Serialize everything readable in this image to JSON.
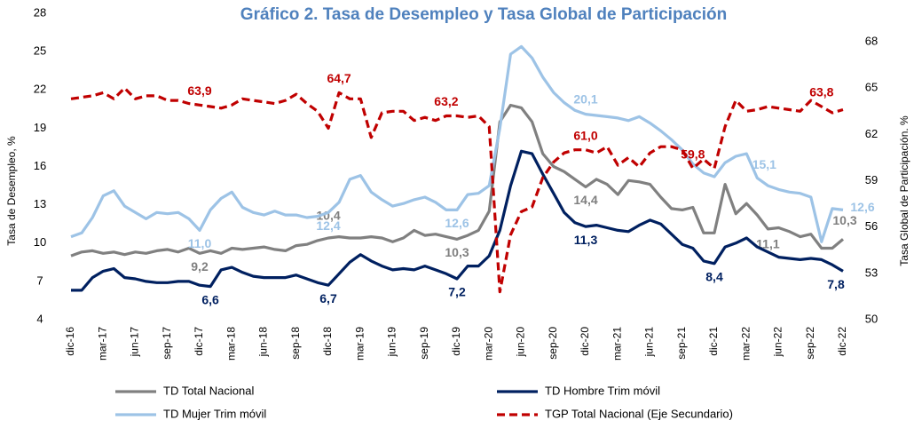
{
  "chart_data": {
    "type": "line",
    "title": "Gráfico 2. Tasa de Desempleo y Tasa Global de Participación",
    "ylabel": "Tasa de Desempleo, %",
    "y2label": "Tasa Global de Participación. %",
    "categories": [
      "dic-16",
      null,
      null,
      "mar-17",
      null,
      null,
      "jun-17",
      null,
      null,
      "sep-17",
      null,
      null,
      "dic-17",
      null,
      null,
      "mar-18",
      null,
      null,
      "jun-18",
      null,
      null,
      "sep-18",
      null,
      null,
      "dic-18",
      null,
      null,
      "mar-19",
      null,
      null,
      "jun-19",
      null,
      null,
      "sep-19",
      null,
      null,
      "dic-19",
      null,
      null,
      "mar-20",
      null,
      null,
      "jun-20",
      null,
      null,
      "sep-20",
      null,
      null,
      "dic-20",
      null,
      null,
      "mar-21",
      null,
      null,
      "jun-21",
      null,
      null,
      "sep-21",
      null,
      null,
      "dic-21",
      null,
      null,
      "mar-22",
      null,
      null,
      "jun-22",
      null,
      null,
      "sep-22",
      null,
      null,
      "dic-22"
    ],
    "ylim": [
      4,
      28
    ],
    "yticks": [
      4,
      7,
      10,
      13,
      16,
      19,
      22,
      25,
      28
    ],
    "y2lim": [
      50,
      68
    ],
    "y2ticks": [
      50,
      53,
      56,
      59,
      62,
      65,
      68
    ],
    "series": [
      {
        "name": "TD Total Nacional",
        "color": "#808080",
        "values": [
          9.0,
          9.3,
          9.4,
          9.2,
          9.3,
          9.1,
          9.3,
          9.2,
          9.4,
          9.5,
          9.3,
          9.6,
          9.2,
          9.4,
          9.2,
          9.6,
          9.5,
          9.6,
          9.7,
          9.5,
          9.4,
          9.8,
          9.9,
          10.2,
          10.4,
          10.5,
          10.4,
          10.4,
          10.5,
          10.4,
          10.1,
          10.4,
          11.0,
          10.6,
          10.7,
          10.5,
          10.3,
          10.6,
          11.0,
          12.5,
          19.5,
          20.8,
          20.6,
          19.5,
          17.0,
          16.0,
          15.6,
          15.0,
          14.4,
          15.0,
          14.6,
          13.8,
          14.9,
          14.8,
          14.6,
          13.6,
          12.7,
          12.6,
          12.8,
          10.8,
          10.8,
          14.6,
          12.3,
          13.1,
          12.2,
          11.1,
          11.2,
          10.9,
          10.5,
          10.7,
          9.6,
          9.6,
          10.3
        ],
        "value_labels": [
          null,
          null,
          null,
          null,
          null,
          null,
          null,
          null,
          null,
          null,
          null,
          null,
          "9,2",
          null,
          null,
          null,
          null,
          null,
          null,
          null,
          null,
          null,
          null,
          null,
          "10,4",
          null,
          null,
          null,
          null,
          null,
          null,
          null,
          null,
          null,
          null,
          null,
          "10,3",
          null,
          null,
          null,
          null,
          null,
          null,
          null,
          null,
          null,
          null,
          null,
          "14,4",
          null,
          null,
          null,
          null,
          null,
          null,
          null,
          null,
          null,
          null,
          null,
          null,
          null,
          null,
          null,
          null,
          "11,1",
          null,
          null,
          null,
          null,
          null,
          null,
          "10,3"
        ]
      },
      {
        "name": "TD Hombre Trim móvil",
        "color": "#002060",
        "values": [
          6.3,
          6.3,
          7.3,
          7.8,
          8.0,
          7.3,
          7.2,
          7.0,
          6.9,
          6.9,
          7.0,
          7.0,
          6.7,
          6.6,
          7.9,
          8.1,
          7.7,
          7.4,
          7.3,
          7.3,
          7.3,
          7.5,
          7.2,
          6.9,
          6.7,
          7.6,
          8.5,
          9.1,
          8.6,
          8.2,
          7.9,
          8.0,
          7.9,
          8.2,
          7.9,
          7.6,
          7.2,
          8.2,
          8.2,
          9.0,
          11.0,
          14.5,
          17.2,
          17.0,
          15.4,
          13.9,
          12.4,
          11.6,
          11.3,
          11.4,
          11.2,
          11.0,
          10.9,
          11.4,
          11.8,
          11.5,
          10.7,
          9.9,
          9.6,
          8.6,
          8.4,
          9.7,
          10.0,
          10.4,
          9.7,
          9.3,
          8.9,
          8.8,
          8.7,
          8.8,
          8.7,
          8.3,
          7.8
        ],
        "value_labels": [
          null,
          null,
          null,
          null,
          null,
          null,
          null,
          null,
          null,
          null,
          null,
          null,
          null,
          "6,6",
          null,
          null,
          null,
          null,
          null,
          null,
          null,
          null,
          null,
          null,
          "6,7",
          null,
          null,
          null,
          null,
          null,
          null,
          null,
          null,
          null,
          null,
          null,
          "7,2",
          null,
          null,
          null,
          null,
          null,
          null,
          null,
          null,
          null,
          null,
          null,
          "11,3",
          null,
          null,
          null,
          null,
          null,
          null,
          null,
          null,
          null,
          null,
          null,
          "8,4",
          null,
          null,
          null,
          null,
          null,
          null,
          null,
          null,
          null,
          null,
          null,
          "7,8"
        ]
      },
      {
        "name": "TD Mujer Trim móvil",
        "color": "#9dc3e6",
        "values": [
          10.5,
          10.8,
          12.0,
          13.7,
          14.1,
          12.9,
          12.4,
          11.9,
          12.4,
          12.3,
          12.4,
          11.9,
          11.0,
          12.6,
          13.5,
          14.0,
          12.8,
          12.4,
          12.2,
          12.5,
          12.2,
          12.2,
          12.0,
          12.1,
          12.4,
          13.2,
          15.0,
          15.3,
          14.0,
          13.4,
          12.9,
          13.1,
          13.4,
          13.6,
          13.2,
          12.6,
          12.6,
          13.8,
          13.9,
          14.5,
          19.0,
          24.8,
          25.4,
          24.5,
          23.0,
          21.8,
          21.0,
          20.4,
          20.1,
          20.0,
          19.9,
          19.8,
          19.6,
          19.9,
          19.4,
          18.8,
          18.1,
          17.3,
          16.2,
          15.5,
          15.2,
          16.3,
          16.8,
          17.0,
          15.1,
          14.5,
          14.2,
          14.0,
          13.9,
          13.6,
          10.1,
          12.7,
          12.6
        ],
        "value_labels": [
          null,
          null,
          null,
          null,
          null,
          null,
          null,
          null,
          null,
          null,
          null,
          null,
          "11,0",
          null,
          null,
          null,
          null,
          null,
          null,
          null,
          null,
          null,
          null,
          null,
          "12,4",
          null,
          null,
          null,
          null,
          null,
          null,
          null,
          null,
          null,
          null,
          null,
          "12,6",
          null,
          null,
          null,
          null,
          null,
          null,
          null,
          null,
          null,
          null,
          null,
          "20,1",
          null,
          null,
          null,
          null,
          null,
          null,
          null,
          null,
          null,
          null,
          null,
          null,
          null,
          null,
          null,
          "15,1",
          null,
          null,
          null,
          null,
          null,
          null,
          null,
          "12,6"
        ]
      },
      {
        "name": "TGP Total Nacional (Eje Secundario)",
        "color": "#c00000",
        "axis": "y2",
        "dashed": true,
        "values": [
          64.3,
          64.4,
          64.5,
          64.7,
          64.3,
          65.0,
          64.3,
          64.5,
          64.5,
          64.2,
          64.2,
          64.0,
          63.9,
          63.8,
          63.7,
          63.9,
          64.3,
          64.2,
          64.1,
          64.0,
          64.2,
          64.6,
          64.0,
          63.5,
          62.4,
          64.7,
          64.3,
          64.3,
          61.8,
          63.4,
          63.5,
          63.5,
          62.9,
          63.1,
          62.9,
          63.2,
          63.2,
          63.1,
          63.2,
          62.5,
          51.8,
          55.5,
          57.0,
          57.3,
          59.2,
          60.2,
          60.8,
          61.0,
          61.0,
          60.8,
          61.2,
          60.0,
          60.5,
          59.9,
          60.8,
          61.2,
          61.2,
          61.0,
          59.8,
          60.4,
          59.8,
          62.5,
          64.2,
          63.5,
          63.6,
          63.8,
          63.7,
          63.6,
          63.5,
          64.2,
          63.8,
          63.4,
          63.6
        ],
        "value_labels": [
          null,
          null,
          null,
          null,
          null,
          null,
          null,
          null,
          null,
          null,
          null,
          null,
          "63,9",
          null,
          null,
          null,
          null,
          null,
          null,
          null,
          null,
          null,
          null,
          null,
          null,
          "64,7",
          null,
          null,
          null,
          null,
          null,
          null,
          null,
          null,
          null,
          "63,2",
          null,
          null,
          null,
          null,
          null,
          null,
          null,
          null,
          null,
          null,
          null,
          null,
          "61,0",
          null,
          null,
          null,
          null,
          null,
          null,
          null,
          null,
          null,
          "59,8",
          null,
          null,
          null,
          null,
          null,
          null,
          null,
          null,
          null,
          null,
          null,
          "63,8",
          null,
          null
        ]
      }
    ]
  }
}
